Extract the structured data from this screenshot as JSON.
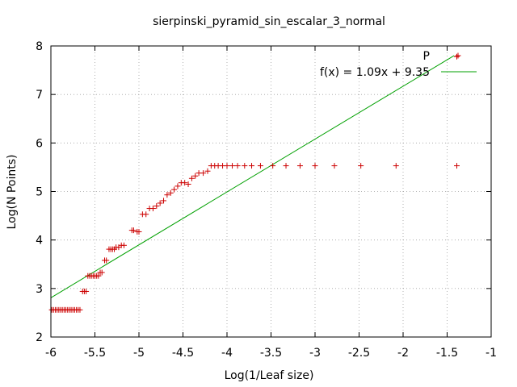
{
  "chart_data": {
    "type": "scatter",
    "title": "sierpinski_pyramid_sin_escalar_3_normal",
    "xlabel": "Log(1/Leaf size)",
    "ylabel": "Log(N Points)",
    "xlim": [
      -6,
      -1
    ],
    "ylim": [
      2,
      8
    ],
    "xticks": [
      -6,
      -5.5,
      -5,
      -4.5,
      -4,
      -3.5,
      -3,
      -2.5,
      -2,
      -1.5,
      -1
    ],
    "yticks": [
      2,
      3,
      4,
      5,
      6,
      7,
      8
    ],
    "xtick_labels": [
      "-6",
      "-5.5",
      "-5",
      "-4.5",
      "-4",
      "-3.5",
      "-3",
      "-2.5",
      "-2",
      "-1.5",
      "-1"
    ],
    "ytick_labels": [
      "2",
      "3",
      "4",
      "5",
      "6",
      "7",
      "8"
    ],
    "grid": true,
    "legend_position": "top-right",
    "colors": {
      "points": "#cc0000",
      "fit": "#00a000",
      "grid": "#a0a0a0",
      "frame": "#000000"
    },
    "series": [
      {
        "name": "P",
        "marker": "plus",
        "x": [
          -5.99,
          -5.97,
          -5.95,
          -5.93,
          -5.91,
          -5.89,
          -5.87,
          -5.85,
          -5.83,
          -5.81,
          -5.79,
          -5.77,
          -5.75,
          -5.73,
          -5.71,
          -5.69,
          -5.67,
          -5.64,
          -5.62,
          -5.6,
          -5.58,
          -5.56,
          -5.54,
          -5.52,
          -5.5,
          -5.48,
          -5.46,
          -5.44,
          -5.42,
          -5.39,
          -5.37,
          -5.34,
          -5.32,
          -5.3,
          -5.28,
          -5.26,
          -5.23,
          -5.2,
          -5.17,
          -5.08,
          -5.06,
          -5.02,
          -5.0,
          -4.96,
          -4.92,
          -4.88,
          -4.84,
          -4.8,
          -4.76,
          -4.72,
          -4.68,
          -4.64,
          -4.6,
          -4.56,
          -4.52,
          -4.48,
          -4.44,
          -4.4,
          -4.36,
          -4.32,
          -4.27,
          -4.22,
          -4.18,
          -4.14,
          -4.1,
          -4.05,
          -4.0,
          -3.94,
          -3.88,
          -3.8,
          -3.72,
          -3.62,
          -3.48,
          -3.33,
          -3.17,
          -3.0,
          -2.78,
          -2.48,
          -2.08,
          -1.39,
          -1.39
        ],
        "y": [
          2.56,
          2.56,
          2.56,
          2.56,
          2.56,
          2.56,
          2.56,
          2.56,
          2.56,
          2.56,
          2.56,
          2.56,
          2.56,
          2.56,
          2.56,
          2.56,
          2.56,
          2.94,
          2.94,
          2.94,
          3.26,
          3.26,
          3.26,
          3.26,
          3.26,
          3.26,
          3.26,
          3.33,
          3.33,
          3.58,
          3.58,
          3.81,
          3.81,
          3.81,
          3.81,
          3.85,
          3.85,
          3.89,
          3.89,
          4.2,
          4.2,
          4.17,
          4.17,
          4.53,
          4.53,
          4.65,
          4.65,
          4.7,
          4.76,
          4.81,
          4.93,
          4.97,
          5.04,
          5.11,
          5.18,
          5.18,
          5.15,
          5.27,
          5.32,
          5.38,
          5.38,
          5.42,
          5.53,
          5.53,
          5.53,
          5.53,
          5.53,
          5.53,
          5.53,
          5.53,
          5.53,
          5.53,
          5.53,
          5.53,
          5.53,
          5.53,
          5.53,
          5.53,
          5.53,
          5.53,
          7.78
        ]
      },
      {
        "name": "f(x) = 1.09x + 9.35",
        "type": "line",
        "slope": 1.09,
        "intercept": 9.35,
        "x_range": [
          -6,
          -1.42
        ]
      }
    ]
  }
}
